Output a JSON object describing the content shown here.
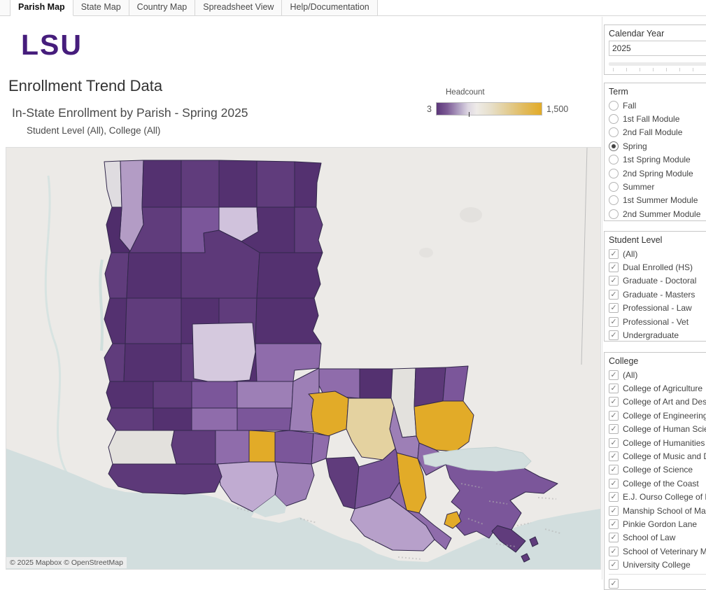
{
  "tabs": {
    "items": [
      {
        "label": "Parish Map",
        "active": true
      },
      {
        "label": "State Map",
        "active": false
      },
      {
        "label": "Country Map",
        "active": false
      },
      {
        "label": "Spreadsheet View",
        "active": false
      },
      {
        "label": "Help/Documentation",
        "active": false
      }
    ]
  },
  "header": {
    "logo": "LSU",
    "title": "Enrollment Trend Data",
    "subtitle": "In-State Enrollment by Parish - Spring 2025",
    "caption": "Student Level (All), College (All)"
  },
  "legend": {
    "title": "Headcount",
    "min": "3",
    "max": "1,500"
  },
  "map": {
    "attribution": "© 2025 Mapbox  © OpenStreetMap"
  },
  "colors": {
    "lsu_purple": "#461D7C",
    "legend_low": "#5b3679",
    "legend_mid": "#eeebe8",
    "legend_high": "#e2ab28",
    "map_land": "#eceae7",
    "map_water": "#d2dede",
    "parish_dark_purple": "#543170",
    "parish_medium_purple": "#8f6cab",
    "parish_light_purple": "#c0abd1",
    "parish_gold": "#e2ab28",
    "parish_no_data_gray": "#e3e1dd"
  },
  "chart_data": {
    "type": "heatmap",
    "subtype": "choropleth map of Louisiana parishes",
    "title": "In-State Enrollment by Parish - Spring 2025",
    "measure": "Headcount",
    "color_scale": {
      "min": 3,
      "max": 1500,
      "low_color": "#5b3679",
      "high_color": "#e2ab28"
    },
    "legend_position": "top-right of map title area",
    "visual_summary": "Most northern and western parishes are dark purple (low headcount near 3). A band of medium purple and lavender parishes covers south-central/coastal Louisiana. Gold (high headcount toward 1,500) parishes cluster around Baton Rouge, Lafayette, Livingston/Tangipahoa and the north shore; one pale tan parish sits mid-south. A few parishes render gray (no data), including one in west-central Louisiana and one narrow parish east of Baton Rouge."
  },
  "ui": {
    "check_glyph": "✓"
  },
  "filters": {
    "calendar_year": {
      "title": "Calendar Year",
      "value": "2025"
    },
    "term": {
      "title": "Term",
      "selected": "Spring",
      "options": [
        {
          "label": "Fall",
          "selected": false
        },
        {
          "label": "1st Fall Module",
          "selected": false
        },
        {
          "label": "2nd Fall Module",
          "selected": false
        },
        {
          "label": "Spring",
          "selected": true
        },
        {
          "label": "1st Spring Module",
          "selected": false
        },
        {
          "label": "2nd Spring Module",
          "selected": false
        },
        {
          "label": "Summer",
          "selected": false
        },
        {
          "label": "1st Summer Module",
          "selected": false
        },
        {
          "label": "2nd Summer Module",
          "selected": false
        }
      ]
    },
    "student_level": {
      "title": "Student Level",
      "options": [
        {
          "label": "(All)",
          "checked": true
        },
        {
          "label": "Dual Enrolled (HS)",
          "checked": true
        },
        {
          "label": "Graduate - Doctoral",
          "checked": true
        },
        {
          "label": "Graduate - Masters",
          "checked": true
        },
        {
          "label": "Professional - Law",
          "checked": true
        },
        {
          "label": "Professional - Vet",
          "checked": true
        },
        {
          "label": "Undergraduate",
          "checked": true
        }
      ]
    },
    "college": {
      "title": "College",
      "options": [
        {
          "label": "(All)",
          "checked": true
        },
        {
          "label": "College of Agriculture",
          "checked": true
        },
        {
          "label": "College of Art and Design",
          "checked": true
        },
        {
          "label": "College of Engineering",
          "checked": true
        },
        {
          "label": "College of Human Sciences",
          "checked": true
        },
        {
          "label": "College of Humanities",
          "checked": true
        },
        {
          "label": "College of Music and Dramatic Arts",
          "checked": true
        },
        {
          "label": "College of Science",
          "checked": true
        },
        {
          "label": "College of the Coast",
          "checked": true
        },
        {
          "label": "E.J. Ourso College of Business",
          "checked": true
        },
        {
          "label": "Manship School of Mass Communication",
          "checked": true
        },
        {
          "label": "Pinkie Gordon Lane",
          "checked": true
        },
        {
          "label": "School of Law",
          "checked": true
        },
        {
          "label": "School of Veterinary Medicine",
          "checked": true
        },
        {
          "label": "University College",
          "checked": true
        },
        {
          "label": "",
          "checked": true,
          "partial": true
        }
      ]
    }
  }
}
